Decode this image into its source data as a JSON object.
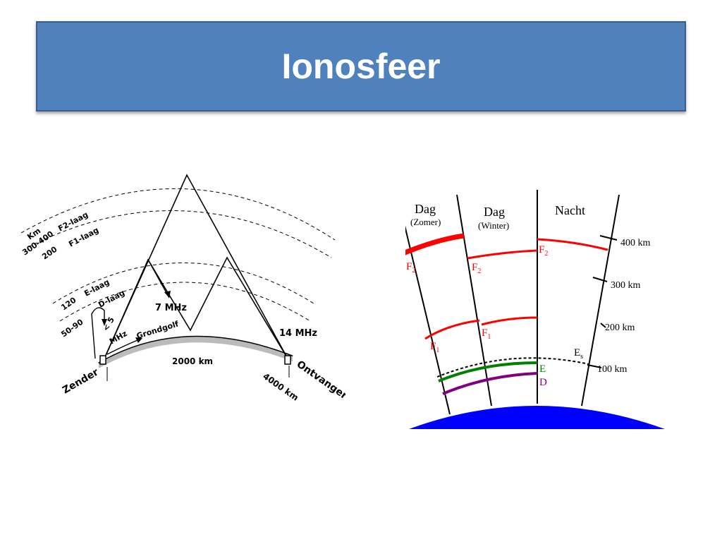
{
  "slide": {
    "title": "Ionosfeer"
  },
  "left_diagram": {
    "labels": {
      "km": "Km",
      "h_f2": "300-400",
      "f2": "F2-laag",
      "h_f1": "200",
      "f1": "F1-laag",
      "h_e": "120",
      "e": "E-laag",
      "h_d": "50-90",
      "d": "D-laag",
      "lt5": "< 5",
      "mhz": "MHz",
      "ground": "Grondgolf",
      "mhz7": "7 MHz",
      "mhz14": "14 MHz",
      "km2000": "2000 km",
      "km4000": "4000 km",
      "zender": "Zender",
      "ontvanger": "Ontvanger"
    }
  },
  "right_diagram": {
    "columns": {
      "dag1": "Dag",
      "zomer": "(Zomer)",
      "dag2": "Dag",
      "winter": "(Winter)",
      "nacht": "Nacht"
    },
    "scale": {
      "km400": "400 km",
      "km300": "300 km",
      "km200": "200 km",
      "km100": "100 km"
    },
    "layers": {
      "f": "F",
      "sub2": "2",
      "sub1": "1",
      "e": "E",
      "d": "D",
      "es": "E",
      "es_sub": "s"
    },
    "colors": {
      "f_layer": "#ff0000",
      "e_layer": "#008000",
      "d_layer": "#800080",
      "earth": "#0000ff"
    }
  }
}
